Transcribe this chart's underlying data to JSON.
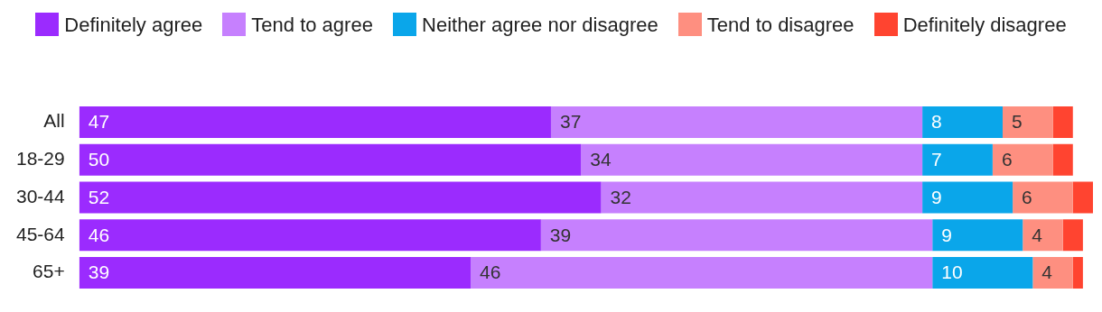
{
  "chart_data": {
    "type": "bar",
    "orientation": "horizontal",
    "stacked": true,
    "legend": "top",
    "categories": [
      "All",
      "18-29",
      "30-44",
      "45-64",
      "65+"
    ],
    "series": [
      {
        "name": "Definitely agree",
        "color": "#9b2bfe",
        "values": [
          47,
          50,
          52,
          46,
          39
        ],
        "value_labels": [
          "47",
          "50",
          "52",
          "46",
          "39"
        ]
      },
      {
        "name": "Tend to agree",
        "color": "#c680fe",
        "values": [
          37,
          34,
          32,
          39,
          46
        ],
        "value_labels": [
          "37",
          "34",
          "32",
          "39",
          "46"
        ]
      },
      {
        "name": "Neither agree nor disagree",
        "color": "#0aa6ea",
        "values": [
          8,
          7,
          9,
          9,
          10
        ],
        "value_labels": [
          "8",
          "7",
          "9",
          "9",
          "10"
        ]
      },
      {
        "name": "Tend to disagree",
        "color": "#fe8f80",
        "values": [
          5,
          6,
          6,
          4,
          4
        ],
        "value_labels": [
          "5",
          "6",
          "6",
          "4",
          "4"
        ]
      },
      {
        "name": "Definitely disagree",
        "color": "#ff4430",
        "values": [
          2,
          2,
          2,
          2,
          1
        ],
        "value_labels": [
          null,
          null,
          null,
          null,
          null
        ]
      }
    ]
  }
}
